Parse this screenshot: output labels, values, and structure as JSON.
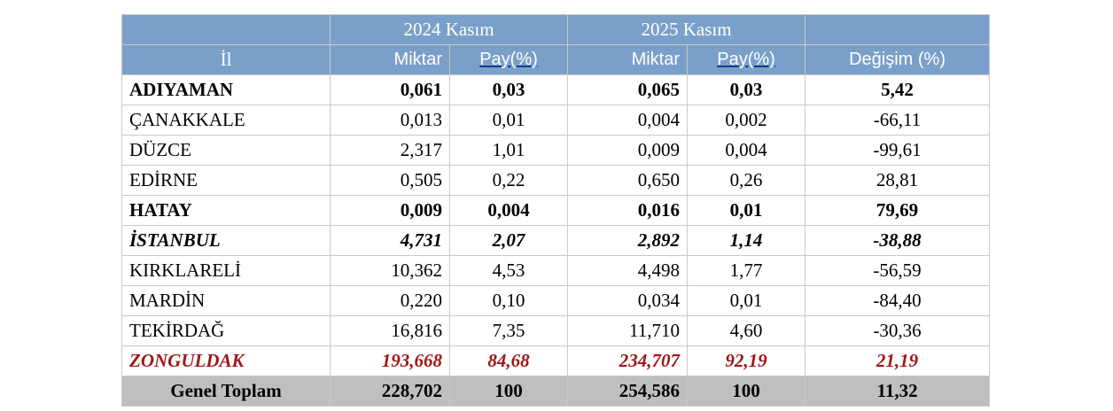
{
  "table": {
    "year_headers": [
      "2024 Kasım",
      "2025 Kasım"
    ],
    "col_headers": {
      "il": "İl",
      "miktar": "Miktar",
      "pay": "Pay(%)",
      "degisim": "Değişim (%)"
    },
    "rows": [
      {
        "il": "ADIYAMAN",
        "m2024": "0,061",
        "p2024": "0,03",
        "m2025": "0,065",
        "p2025": "0,03",
        "degisim": "5,42",
        "style": "bold"
      },
      {
        "il": "ÇANAKKALE",
        "m2024": "0,013",
        "p2024": "0,01",
        "m2025": "0,004",
        "p2025": "0,002",
        "degisim": "-66,11",
        "style": "normal"
      },
      {
        "il": "DÜZCE",
        "m2024": "2,317",
        "p2024": "1,01",
        "m2025": "0,009",
        "p2025": "0,004",
        "degisim": "-99,61",
        "style": "normal"
      },
      {
        "il": "EDİRNE",
        "m2024": "0,505",
        "p2024": "0,22",
        "m2025": "0,650",
        "p2025": "0,26",
        "degisim": "28,81",
        "style": "normal"
      },
      {
        "il": "HATAY",
        "m2024": "0,009",
        "p2024": "0,004",
        "m2025": "0,016",
        "p2025": "0,01",
        "degisim": "79,69",
        "style": "bold"
      },
      {
        "il": "İSTANBUL",
        "m2024": "4,731",
        "p2024": "2,07",
        "m2025": "2,892",
        "p2025": "1,14",
        "degisim": "-38,88",
        "style": "italic"
      },
      {
        "il": "KIRKLARELİ",
        "m2024": "10,362",
        "p2024": "4,53",
        "m2025": "4,498",
        "p2025": "1,77",
        "degisim": "-56,59",
        "style": "normal"
      },
      {
        "il": "MARDİN",
        "m2024": "0,220",
        "p2024": "0,10",
        "m2025": "0,034",
        "p2025": "0,01",
        "degisim": "-84,40",
        "style": "normal"
      },
      {
        "il": "TEKİRDAĞ",
        "m2024": "16,816",
        "p2024": "7,35",
        "m2025": "11,710",
        "p2025": "4,60",
        "degisim": "-30,36",
        "style": "normal"
      },
      {
        "il": "ZONGULDAK",
        "m2024": "193,668",
        "p2024": "84,68",
        "m2025": "234,707",
        "p2025": "92,19",
        "degisim": "21,19",
        "style": "red"
      }
    ],
    "total": {
      "il": "Genel Toplam",
      "m2024": "228,702",
      "p2024": "100",
      "m2025": "254,586",
      "p2025": "100",
      "degisim": "11,32"
    }
  },
  "colors": {
    "header_bg": "#7aa0c9",
    "total_bg": "#bfbfbf",
    "highlight_red": "#a01616",
    "underline_blue": "#1a3a8a"
  }
}
